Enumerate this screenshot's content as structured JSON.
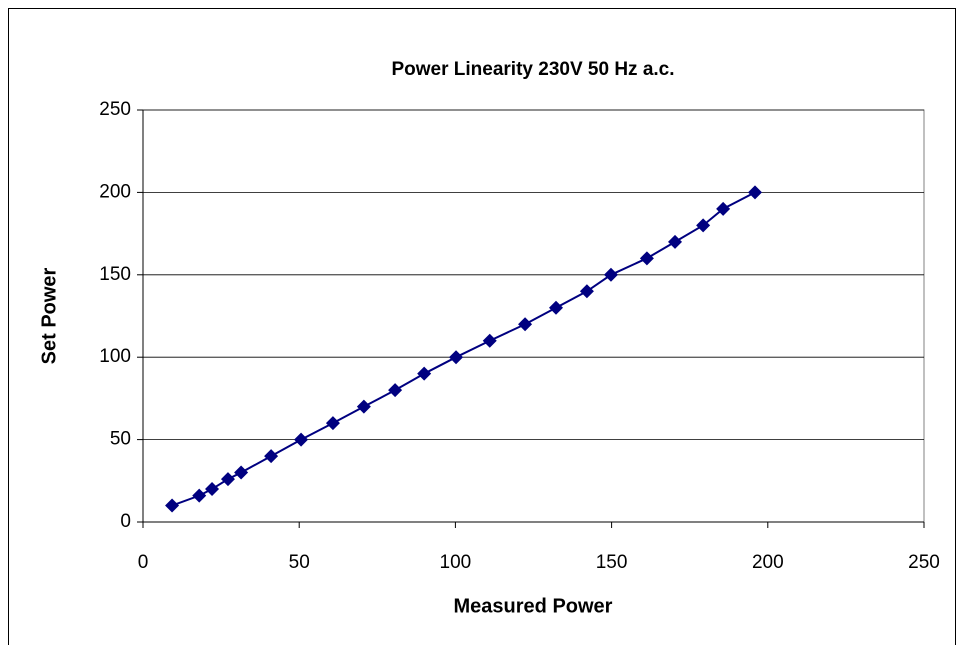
{
  "chart_data": {
    "type": "line",
    "title": "Power Linearity 230V 50 Hz a.c.",
    "x_label": "Measured Power",
    "y_label": "Set Power",
    "x": [
      9.3,
      18,
      22.1,
      27.2,
      31.4,
      41,
      50.6,
      60.8,
      70.7,
      80.7,
      90,
      100.2,
      111,
      122.3,
      132.2,
      142.1,
      149.8,
      161.3,
      170.3,
      179.3,
      185.7,
      195.9
    ],
    "series": [
      {
        "name": "Set Power",
        "color": "#000080",
        "values": [
          10,
          16,
          20,
          26,
          30,
          40,
          50,
          60,
          70,
          80,
          90,
          100,
          110,
          120,
          130,
          140,
          150,
          160,
          170,
          180,
          190,
          200
        ]
      }
    ],
    "xlim": [
      0,
      250
    ],
    "xticks": [
      0,
      50,
      100,
      150,
      200,
      250
    ],
    "ylim": [
      0,
      250
    ],
    "yticks": [
      0,
      50,
      100,
      150,
      200,
      250
    ],
    "grid": true
  }
}
